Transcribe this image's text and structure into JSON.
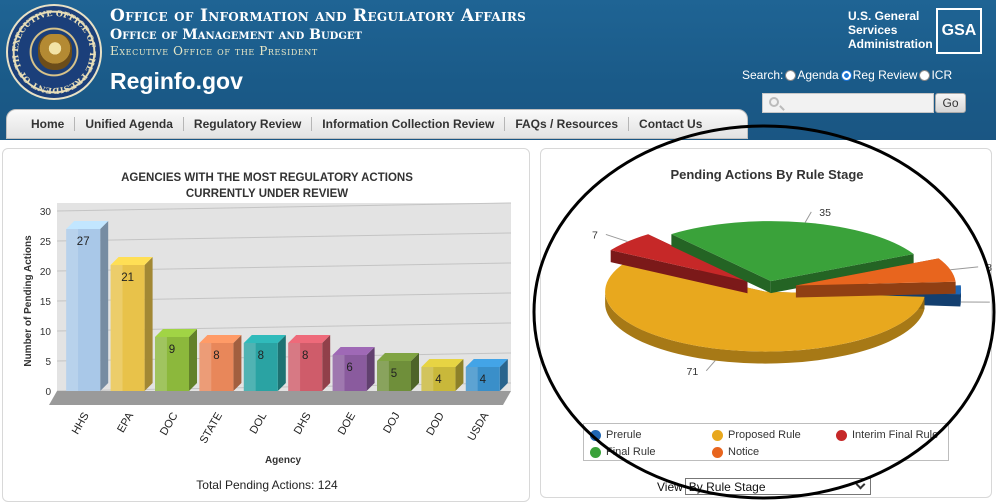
{
  "header": {
    "office_line1": "Office of Information and Regulatory Affairs",
    "office_line2": "Office of Management and Budget",
    "office_line3": "Executive Office of the President",
    "site_name": "Reginfo.gov",
    "seal_text": "EXECUTIVE OFFICE OF THE PRESIDENT OF THE UNITED STATES",
    "gsa_line1": "U.S. General",
    "gsa_line2": "Services",
    "gsa_line3": "Administration",
    "gsa_logo": "GSA"
  },
  "search": {
    "label": "Search:",
    "options": [
      "Agenda",
      "Reg Review",
      "ICR"
    ],
    "selected": "Reg Review",
    "value": "",
    "go_label": "Go"
  },
  "nav": {
    "items": [
      "Home",
      "Unified Agenda",
      "Regulatory Review",
      "Information Collection Review",
      "FAQs / Resources",
      "Contact Us"
    ]
  },
  "bar_panel": {
    "title_line1": "AGENCIES WITH THE MOST REGULATORY ACTIONS",
    "title_line2": "CURRENTLY UNDER REVIEW",
    "total": "Total Pending Actions: 124"
  },
  "pie_panel": {
    "view_label": "View",
    "view_value": "By Rule Stage"
  },
  "chart_data": [
    {
      "type": "bar",
      "title": "AGENCIES WITH THE MOST REGULATORY ACTIONS CURRENTLY UNDER REVIEW",
      "xlabel": "Agency",
      "ylabel": "Number of Pending Actions",
      "ylim": [
        0,
        30
      ],
      "yticks": [
        0,
        5,
        10,
        15,
        20,
        25,
        30
      ],
      "categories": [
        "HHS",
        "EPA",
        "DOC",
        "STATE",
        "DOL",
        "DHS",
        "DOE",
        "DOJ",
        "DOD",
        "USDA"
      ],
      "values": [
        27,
        21,
        9,
        8,
        8,
        8,
        6,
        5,
        4,
        4
      ],
      "colors": [
        "#a9c8e8",
        "#e8c24a",
        "#8cb83c",
        "#e8875a",
        "#2aa3a3",
        "#cf5c6a",
        "#8a5b9e",
        "#6f8f3a",
        "#c9b83a",
        "#3a8fc9"
      ],
      "grid": true
    },
    {
      "type": "pie",
      "title": "Pending Actions By Rule Stage",
      "categories": [
        "Prerule",
        "Proposed Rule",
        "Interim Final Rule",
        "Final Rule",
        "Notice"
      ],
      "values": [
        3,
        71,
        7,
        35,
        8
      ],
      "colors": [
        "#1f66b3",
        "#e8a81e",
        "#c62828",
        "#3aa23a",
        "#e8651e"
      ],
      "legend": "bottom"
    }
  ]
}
